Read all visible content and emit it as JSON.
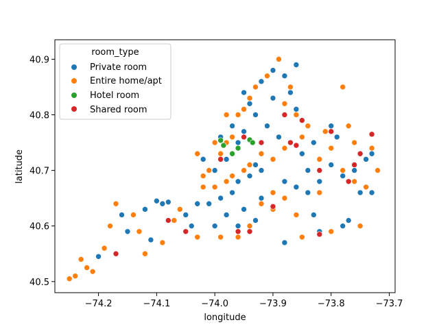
{
  "chart_data": {
    "type": "scatter",
    "title": "",
    "xlabel": "longitude",
    "ylabel": "latitude",
    "xlim": [
      -74.275,
      -73.69
    ],
    "ylim": [
      40.48,
      40.935
    ],
    "xticks": [
      -74.2,
      -74.1,
      -74.0,
      -73.9,
      -73.8,
      -73.7
    ],
    "xtick_labels": [
      "−74.2",
      "−74.1",
      "−74.0",
      "−73.9",
      "−73.8",
      "−73.7"
    ],
    "yticks": [
      40.5,
      40.6,
      40.7,
      40.8,
      40.9
    ],
    "ytick_labels": [
      "40.5",
      "40.6",
      "40.7",
      "40.8",
      "40.9"
    ],
    "grid": false,
    "legend": {
      "title": "room_type",
      "placement": "top-left"
    },
    "series": [
      {
        "name": "Private room",
        "color": "#1f77b4",
        "points": [
          [
            -74.08,
            40.643
          ],
          [
            -74.09,
            40.64
          ],
          [
            -74.1,
            40.645
          ],
          [
            -74.12,
            40.63
          ],
          [
            -74.16,
            40.62
          ],
          [
            -74.2,
            40.545
          ],
          [
            -74.15,
            40.59
          ],
          [
            -74.11,
            40.575
          ],
          [
            -74.05,
            40.62
          ],
          [
            -74.04,
            40.6
          ],
          [
            -74.03,
            40.64
          ],
          [
            -74.0,
            40.6
          ],
          [
            -73.98,
            40.62
          ],
          [
            -73.96,
            40.6
          ],
          [
            -73.95,
            40.63
          ],
          [
            -73.93,
            40.61
          ],
          [
            -73.92,
            40.65
          ],
          [
            -73.9,
            40.66
          ],
          [
            -73.88,
            40.68
          ],
          [
            -73.86,
            40.67
          ],
          [
            -73.84,
            40.7
          ],
          [
            -73.82,
            40.68
          ],
          [
            -73.8,
            40.71
          ],
          [
            -73.78,
            40.69
          ],
          [
            -73.76,
            40.7
          ],
          [
            -73.74,
            40.72
          ],
          [
            -73.73,
            40.66
          ],
          [
            -73.75,
            40.66
          ],
          [
            -73.79,
            40.76
          ],
          [
            -73.8,
            40.78
          ],
          [
            -73.83,
            40.75
          ],
          [
            -73.85,
            40.73
          ],
          [
            -73.87,
            40.75
          ],
          [
            -73.89,
            40.76
          ],
          [
            -73.91,
            40.78
          ],
          [
            -73.93,
            40.8
          ],
          [
            -73.94,
            40.82
          ],
          [
            -73.95,
            40.84
          ],
          [
            -73.92,
            40.86
          ],
          [
            -73.9,
            40.88
          ],
          [
            -73.88,
            40.87
          ],
          [
            -73.86,
            40.89
          ],
          [
            -73.87,
            40.84
          ],
          [
            -73.9,
            40.83
          ],
          [
            -73.96,
            40.75
          ],
          [
            -73.98,
            40.72
          ],
          [
            -74.0,
            40.7
          ],
          [
            -74.02,
            40.72
          ],
          [
            -73.99,
            40.76
          ],
          [
            -73.97,
            40.78
          ],
          [
            -73.95,
            40.77
          ],
          [
            -73.93,
            40.71
          ],
          [
            -73.92,
            40.7
          ],
          [
            -73.94,
            40.69
          ],
          [
            -73.96,
            40.68
          ],
          [
            -73.97,
            40.66
          ],
          [
            -73.99,
            40.65
          ],
          [
            -74.01,
            40.64
          ],
          [
            -73.84,
            40.66
          ],
          [
            -73.83,
            40.62
          ],
          [
            -73.78,
            40.6
          ],
          [
            -73.77,
            40.61
          ],
          [
            -73.82,
            40.59
          ],
          [
            -73.88,
            40.57
          ],
          [
            -73.73,
            40.73
          ],
          [
            -73.86,
            40.81
          ]
        ]
      },
      {
        "name": "Entire home/apt",
        "color": "#ff7f0e",
        "points": [
          [
            -74.25,
            40.505
          ],
          [
            -74.24,
            40.51
          ],
          [
            -74.22,
            40.525
          ],
          [
            -74.21,
            40.518
          ],
          [
            -74.23,
            40.54
          ],
          [
            -74.19,
            40.56
          ],
          [
            -74.18,
            40.6
          ],
          [
            -74.17,
            40.64
          ],
          [
            -74.14,
            40.62
          ],
          [
            -74.13,
            40.59
          ],
          [
            -74.12,
            40.55
          ],
          [
            -74.09,
            40.57
          ],
          [
            -74.07,
            40.61
          ],
          [
            -74.06,
            40.63
          ],
          [
            -74.03,
            40.58
          ],
          [
            -74.02,
            40.67
          ],
          [
            -74.01,
            40.7
          ],
          [
            -73.99,
            40.73
          ],
          [
            -73.98,
            40.75
          ],
          [
            -73.97,
            40.76
          ],
          [
            -73.96,
            40.8
          ],
          [
            -73.95,
            40.81
          ],
          [
            -73.94,
            40.83
          ],
          [
            -73.93,
            40.85
          ],
          [
            -73.91,
            40.87
          ],
          [
            -73.89,
            40.9
          ],
          [
            -73.87,
            40.85
          ],
          [
            -73.88,
            40.82
          ],
          [
            -73.86,
            40.8
          ],
          [
            -73.84,
            40.78
          ],
          [
            -73.82,
            40.72
          ],
          [
            -73.8,
            40.74
          ],
          [
            -73.78,
            40.7
          ],
          [
            -73.76,
            40.68
          ],
          [
            -73.74,
            40.67
          ],
          [
            -73.72,
            40.7
          ],
          [
            -73.73,
            40.74
          ],
          [
            -73.77,
            40.78
          ],
          [
            -73.78,
            40.85
          ],
          [
            -73.81,
            40.77
          ],
          [
            -73.85,
            40.76
          ],
          [
            -73.88,
            40.74
          ],
          [
            -73.9,
            40.72
          ],
          [
            -73.92,
            40.73
          ],
          [
            -73.94,
            40.71
          ],
          [
            -73.95,
            40.7
          ],
          [
            -73.97,
            40.69
          ],
          [
            -73.98,
            40.68
          ],
          [
            -74.0,
            40.67
          ],
          [
            -74.02,
            40.69
          ],
          [
            -74.03,
            40.73
          ],
          [
            -74.0,
            40.75
          ],
          [
            -73.98,
            40.8
          ],
          [
            -73.92,
            40.64
          ],
          [
            -73.9,
            40.63
          ],
          [
            -73.94,
            40.6
          ],
          [
            -73.96,
            40.58
          ],
          [
            -73.99,
            40.58
          ],
          [
            -73.86,
            40.62
          ],
          [
            -73.85,
            40.58
          ],
          [
            -73.8,
            40.59
          ],
          [
            -73.75,
            40.6
          ],
          [
            -73.82,
            40.66
          ],
          [
            -73.76,
            40.75
          ],
          [
            -73.9,
            40.66
          ],
          [
            -73.88,
            40.65
          ]
        ]
      },
      {
        "name": "Hotel room",
        "color": "#2ca02c",
        "points": [
          [
            -73.99,
            40.754
          ],
          [
            -73.985,
            40.745
          ],
          [
            -73.97,
            40.73
          ],
          [
            -73.96,
            40.74
          ],
          [
            -73.94,
            40.755
          ],
          [
            -73.935,
            40.75
          ]
        ]
      },
      {
        "name": "Shared room",
        "color": "#d62728",
        "points": [
          [
            -74.08,
            40.61
          ],
          [
            -74.05,
            40.59
          ],
          [
            -73.96,
            40.59
          ],
          [
            -73.94,
            40.59
          ],
          [
            -73.9,
            40.635
          ],
          [
            -73.87,
            40.75
          ],
          [
            -73.86,
            40.745
          ],
          [
            -73.85,
            40.79
          ],
          [
            -73.82,
            40.7
          ],
          [
            -73.8,
            40.77
          ],
          [
            -73.77,
            40.68
          ],
          [
            -73.76,
            40.71
          ],
          [
            -73.75,
            40.73
          ],
          [
            -73.73,
            40.765
          ],
          [
            -73.82,
            40.585
          ],
          [
            -73.95,
            40.76
          ],
          [
            -73.92,
            40.75
          ],
          [
            -73.99,
            40.72
          ],
          [
            -73.88,
            40.8
          ],
          [
            -74.17,
            40.55
          ]
        ]
      }
    ]
  }
}
